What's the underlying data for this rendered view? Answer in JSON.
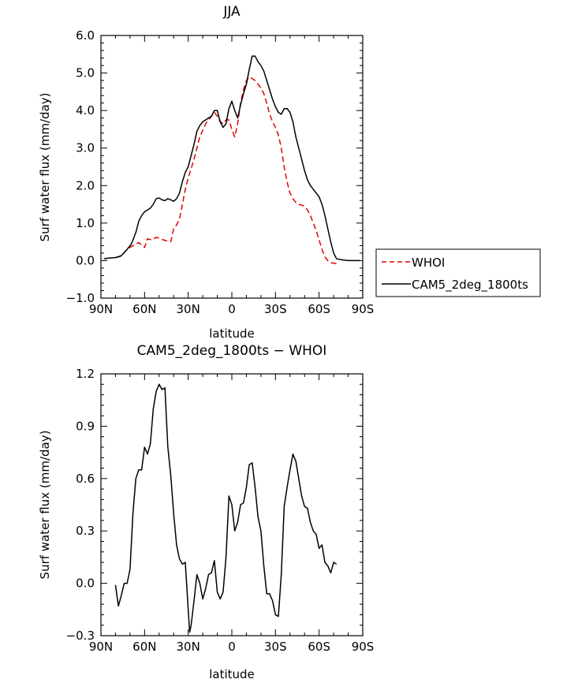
{
  "chart_data": [
    {
      "type": "line",
      "title": "JJA",
      "xlabel": "latitude",
      "ylabel": "Surf water flux (mm/day)",
      "xlim": [
        90,
        -90
      ],
      "ylim": [
        -1.0,
        6.0
      ],
      "x_ticks": [
        90,
        60,
        30,
        0,
        -30,
        -60,
        -90
      ],
      "x_tick_labels": [
        "90N",
        "60N",
        "30N",
        "0",
        "30S",
        "60S",
        "90S"
      ],
      "y_ticks": [
        -1.0,
        0.0,
        1.0,
        2.0,
        3.0,
        4.0,
        5.0,
        6.0
      ],
      "y_tick_labels": [
        "−1.0",
        "0.0",
        "1.0",
        "2.0",
        "3.0",
        "4.0",
        "5.0",
        "6.0"
      ],
      "legend_position": "right",
      "series": [
        {
          "name": "WHOI",
          "color": "#e00000",
          "dash": "dashed",
          "x": [
            80,
            76,
            72,
            68,
            64,
            60,
            58,
            55,
            52,
            50,
            47,
            44,
            42,
            40,
            38,
            36,
            34,
            32,
            30,
            26,
            22,
            18,
            15,
            12,
            10,
            8,
            6,
            4,
            2,
            0,
            -2,
            -4,
            -6,
            -8,
            -10,
            -12,
            -14,
            -16,
            -18,
            -20,
            -22,
            -24,
            -26,
            -28,
            -30,
            -32,
            -34,
            -36,
            -38,
            -40,
            -42,
            -44,
            -46,
            -48,
            -50,
            -52,
            -54,
            -56,
            -58,
            -60,
            -62,
            -64,
            -66,
            -68,
            -70,
            -72
          ],
          "values": [
            0.08,
            0.12,
            0.3,
            0.4,
            0.48,
            0.35,
            0.58,
            0.55,
            0.62,
            0.6,
            0.55,
            0.52,
            0.5,
            0.85,
            0.95,
            1.1,
            1.5,
            1.9,
            2.2,
            2.7,
            3.3,
            3.65,
            3.8,
            3.95,
            3.85,
            3.7,
            3.65,
            3.75,
            3.75,
            3.5,
            3.3,
            3.65,
            4.2,
            4.55,
            4.8,
            4.9,
            4.85,
            4.8,
            4.7,
            4.6,
            4.45,
            4.2,
            3.9,
            3.7,
            3.55,
            3.35,
            3.0,
            2.5,
            2.1,
            1.8,
            1.65,
            1.55,
            1.5,
            1.48,
            1.45,
            1.35,
            1.2,
            1.0,
            0.8,
            0.55,
            0.3,
            0.1,
            0.0,
            -0.05,
            -0.07,
            -0.08
          ]
        },
        {
          "name": "CAM5_2deg_1800ts",
          "color": "#000000",
          "dash": "solid",
          "x": [
            88,
            84,
            80,
            76,
            72,
            69,
            66,
            64,
            62,
            60,
            58,
            56,
            54,
            52,
            50,
            48,
            46,
            44,
            42,
            40,
            38,
            36,
            34,
            32,
            30,
            28,
            26,
            24,
            22,
            20,
            18,
            16,
            14,
            12,
            10,
            8,
            6,
            4,
            2,
            0,
            -2,
            -4,
            -6,
            -8,
            -10,
            -12,
            -14,
            -16,
            -18,
            -20,
            -22,
            -24,
            -26,
            -28,
            -30,
            -32,
            -34,
            -36,
            -38,
            -40,
            -42,
            -44,
            -46,
            -48,
            -50,
            -52,
            -54,
            -56,
            -58,
            -60,
            -62,
            -64,
            -66,
            -68,
            -70,
            -72,
            -76,
            -80,
            -84,
            -88
          ],
          "values": [
            0.05,
            0.07,
            0.08,
            0.13,
            0.3,
            0.45,
            0.75,
            1.05,
            1.2,
            1.3,
            1.35,
            1.4,
            1.5,
            1.65,
            1.67,
            1.62,
            1.6,
            1.65,
            1.62,
            1.58,
            1.65,
            1.8,
            2.1,
            2.35,
            2.5,
            2.8,
            3.1,
            3.45,
            3.6,
            3.7,
            3.75,
            3.8,
            3.85,
            4.0,
            4.0,
            3.7,
            3.55,
            3.65,
            4.05,
            4.25,
            4.0,
            3.8,
            4.15,
            4.45,
            4.7,
            5.1,
            5.45,
            5.45,
            5.3,
            5.2,
            5.05,
            4.8,
            4.55,
            4.3,
            4.1,
            3.95,
            3.9,
            4.05,
            4.05,
            3.95,
            3.7,
            3.3,
            3.0,
            2.7,
            2.4,
            2.15,
            2.0,
            1.9,
            1.8,
            1.7,
            1.5,
            1.2,
            0.85,
            0.5,
            0.2,
            0.05,
            0.02,
            0.0,
            0.0,
            0.0
          ]
        }
      ]
    },
    {
      "type": "line",
      "title": "CAM5_2deg_1800ts − WHOI",
      "xlabel": "latitude",
      "ylabel": "Surf water flux (mm/day)",
      "xlim": [
        90,
        -90
      ],
      "ylim": [
        -0.3,
        1.2
      ],
      "x_ticks": [
        90,
        60,
        30,
        0,
        -30,
        -60,
        -90
      ],
      "x_tick_labels": [
        "90N",
        "60N",
        "30N",
        "0",
        "30S",
        "60S",
        "90S"
      ],
      "y_ticks": [
        -0.3,
        0.0,
        0.3,
        0.6,
        0.9,
        1.2
      ],
      "y_tick_labels": [
        "−0.3",
        "0.0",
        "0.3",
        "0.6",
        "0.9",
        "1.2"
      ],
      "series": [
        {
          "color": "#000000",
          "dash": "solid",
          "x": [
            80,
            78,
            76,
            74,
            72,
            70,
            68,
            66,
            64,
            62,
            60,
            58,
            56,
            54,
            52,
            50,
            48,
            46,
            44,
            42,
            40,
            38,
            36,
            34,
            32,
            30,
            29,
            28,
            26,
            24,
            22,
            20,
            18,
            16,
            14,
            12,
            10,
            8,
            6,
            4,
            2,
            0,
            -2,
            -4,
            -6,
            -8,
            -10,
            -12,
            -14,
            -16,
            -18,
            -20,
            -22,
            -24,
            -26,
            -28,
            -30,
            -32,
            -34,
            -36,
            -38,
            -40,
            -42,
            -44,
            -46,
            -48,
            -50,
            -52,
            -54,
            -56,
            -58,
            -60,
            -62,
            -64,
            -66,
            -68,
            -70,
            -72
          ],
          "values": [
            -0.01,
            -0.13,
            -0.07,
            0.0,
            0.0,
            0.08,
            0.4,
            0.6,
            0.65,
            0.65,
            0.78,
            0.74,
            0.8,
            1.0,
            1.1,
            1.14,
            1.11,
            1.12,
            0.78,
            0.62,
            0.4,
            0.22,
            0.14,
            0.11,
            0.12,
            -0.15,
            -0.28,
            -0.24,
            -0.1,
            0.05,
            0.0,
            -0.09,
            -0.03,
            0.05,
            0.06,
            0.13,
            -0.05,
            -0.09,
            -0.05,
            0.15,
            0.5,
            0.45,
            0.3,
            0.35,
            0.45,
            0.46,
            0.55,
            0.68,
            0.69,
            0.55,
            0.38,
            0.3,
            0.1,
            -0.06,
            -0.06,
            -0.1,
            -0.18,
            -0.19,
            0.05,
            0.44,
            0.55,
            0.65,
            0.74,
            0.7,
            0.6,
            0.5,
            0.44,
            0.43,
            0.35,
            0.3,
            0.28,
            0.2,
            0.22,
            0.12,
            0.1,
            0.06,
            0.12,
            0.11
          ]
        }
      ]
    }
  ]
}
